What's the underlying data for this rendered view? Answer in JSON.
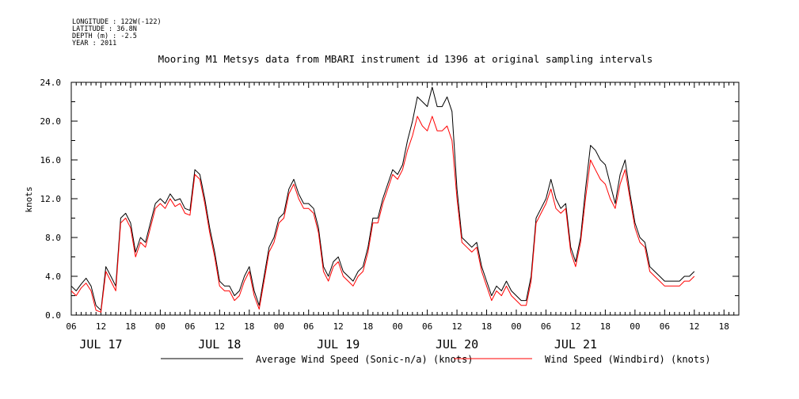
{
  "header": {
    "lines": [
      "LONGITUDE : 122W(-122)",
      "LATITUDE : 36.8N",
      "DEPTH (m) : -2.5",
      "YEAR : 2011"
    ]
  },
  "chart_data": {
    "type": "line",
    "title": "Mooring M1 Metsys data from MBARI instrument id 1396 at original sampling intervals",
    "ylabel": "knots",
    "xlabel": "",
    "ylim": [
      0,
      24
    ],
    "xlim_hours": [
      6,
      141
    ],
    "y_ticks": [
      "0.0",
      "4.0",
      "8.0",
      "12.0",
      "16.0",
      "20.0",
      "24.0"
    ],
    "x_ticks": [
      {
        "h": 6,
        "label": "06"
      },
      {
        "h": 12,
        "label": "12"
      },
      {
        "h": 18,
        "label": "18"
      },
      {
        "h": 24,
        "label": "00"
      },
      {
        "h": 30,
        "label": "06"
      },
      {
        "h": 36,
        "label": "12"
      },
      {
        "h": 42,
        "label": "18"
      },
      {
        "h": 48,
        "label": "00"
      },
      {
        "h": 54,
        "label": "06"
      },
      {
        "h": 60,
        "label": "12"
      },
      {
        "h": 66,
        "label": "18"
      },
      {
        "h": 72,
        "label": "00"
      },
      {
        "h": 78,
        "label": "06"
      },
      {
        "h": 84,
        "label": "12"
      },
      {
        "h": 90,
        "label": "18"
      },
      {
        "h": 96,
        "label": "00"
      },
      {
        "h": 102,
        "label": "06"
      },
      {
        "h": 108,
        "label": "12"
      },
      {
        "h": 114,
        "label": "18"
      },
      {
        "h": 120,
        "label": "00"
      },
      {
        "h": 126,
        "label": "06"
      },
      {
        "h": 132,
        "label": "12"
      },
      {
        "h": 138,
        "label": "18"
      }
    ],
    "day_labels": [
      {
        "h": 12,
        "label": "JUL 17"
      },
      {
        "h": 36,
        "label": "JUL 18"
      },
      {
        "h": 60,
        "label": "JUL 19"
      },
      {
        "h": 84,
        "label": "JUL 20"
      },
      {
        "h": 108,
        "label": "JUL 21"
      }
    ],
    "grid": false,
    "legend": "bottom",
    "x_hours": [
      6,
      7,
      8,
      9,
      10,
      11,
      12,
      13,
      14,
      15,
      16,
      17,
      18,
      19,
      20,
      21,
      22,
      23,
      24,
      25,
      26,
      27,
      28,
      29,
      30,
      31,
      32,
      33,
      34,
      35,
      36,
      37,
      38,
      39,
      40,
      41,
      42,
      43,
      44,
      45,
      46,
      47,
      48,
      49,
      50,
      51,
      52,
      53,
      54,
      55,
      56,
      57,
      58,
      59,
      60,
      61,
      62,
      63,
      64,
      65,
      66,
      67,
      68,
      69,
      70,
      71,
      72,
      73,
      74,
      75,
      76,
      77,
      78,
      79,
      80,
      81,
      82,
      83,
      84,
      85,
      86,
      87,
      88,
      89,
      90,
      91,
      92,
      93,
      94,
      95,
      96,
      97,
      98,
      99,
      100,
      101,
      102,
      103,
      104,
      105,
      106,
      107,
      108,
      109,
      110,
      111,
      112,
      113,
      114,
      115,
      116,
      117,
      118,
      119,
      120,
      121,
      122,
      123,
      124,
      125,
      126,
      127,
      128,
      129,
      130,
      131,
      132,
      133,
      134,
      135,
      136,
      137,
      138,
      139,
      140,
      141
    ],
    "series": [
      {
        "name": "Average Wind Speed (Sonic-n/a) (knots)",
        "color": "#000000",
        "values": [
          3.0,
          2.5,
          3.2,
          3.8,
          3.0,
          1.0,
          0.5,
          5.0,
          4.0,
          3.0,
          10.0,
          10.5,
          9.5,
          6.5,
          8.0,
          7.5,
          9.5,
          11.5,
          12.0,
          11.5,
          12.5,
          11.8,
          12.0,
          11.0,
          10.8,
          15.0,
          14.5,
          12.0,
          9.0,
          6.5,
          3.5,
          3.0,
          3.0,
          2.0,
          2.5,
          4.0,
          5.0,
          2.5,
          1.0,
          4.0,
          7.0,
          8.0,
          10.0,
          10.5,
          13.0,
          14.0,
          12.5,
          11.5,
          11.5,
          11.0,
          9.0,
          5.0,
          4.0,
          5.5,
          6.0,
          4.5,
          4.0,
          3.5,
          4.5,
          5.0,
          7.0,
          10.0,
          10.0,
          12.0,
          13.5,
          15.0,
          14.5,
          15.5,
          18.0,
          20.0,
          22.5,
          22.0,
          21.5,
          23.5,
          21.5,
          21.5,
          22.5,
          21.0,
          13.0,
          8.0,
          7.5,
          7.0,
          7.5,
          5.0,
          3.5,
          2.0,
          3.0,
          2.5,
          3.5,
          2.5,
          2.0,
          1.5,
          1.5,
          4.0,
          10.0,
          11.0,
          12.0,
          14.0,
          12.0,
          11.0,
          11.5,
          7.0,
          5.5,
          8.0,
          13.0,
          17.5,
          17.0,
          16.0,
          15.5,
          13.5,
          11.5,
          14.5,
          16.0,
          12.5,
          9.5,
          8.0,
          7.5,
          5.0,
          4.5,
          4.0,
          3.5,
          3.5,
          3.5,
          3.5,
          4.0,
          4.0,
          4.5
        ],
        "show_legend": true
      },
      {
        "name": "Wind Speed (Windbird) (knots)",
        "color": "#ff0000",
        "values": [
          2.5,
          2.0,
          2.8,
          3.3,
          2.5,
          0.5,
          0.3,
          4.5,
          3.5,
          2.5,
          9.5,
          10.0,
          9.0,
          6.0,
          7.5,
          7.0,
          9.0,
          11.0,
          11.5,
          11.0,
          12.0,
          11.2,
          11.5,
          10.5,
          10.3,
          14.5,
          14.0,
          11.5,
          8.5,
          6.0,
          3.0,
          2.5,
          2.5,
          1.5,
          2.0,
          3.5,
          4.5,
          2.0,
          0.6,
          3.5,
          6.5,
          7.5,
          9.5,
          10.0,
          12.5,
          13.5,
          12.0,
          11.0,
          11.0,
          10.5,
          8.5,
          4.5,
          3.5,
          5.0,
          5.5,
          4.0,
          3.5,
          3.0,
          4.0,
          4.5,
          6.5,
          9.5,
          9.5,
          11.5,
          13.0,
          14.5,
          14.0,
          15.0,
          17.0,
          18.5,
          20.5,
          19.5,
          19.0,
          20.5,
          19.0,
          19.0,
          19.5,
          18.0,
          12.0,
          7.5,
          7.0,
          6.5,
          7.0,
          4.5,
          3.0,
          1.5,
          2.5,
          2.0,
          3.0,
          2.0,
          1.5,
          1.0,
          1.0,
          3.5,
          9.5,
          10.5,
          11.5,
          13.0,
          11.0,
          10.5,
          11.0,
          6.5,
          5.0,
          7.5,
          12.0,
          16.0,
          15.0,
          14.0,
          13.5,
          12.0,
          11.0,
          13.5,
          15.0,
          12.0,
          9.0,
          7.5,
          7.0,
          4.5,
          4.0,
          3.5,
          3.0,
          3.0,
          3.0,
          3.0,
          3.5,
          3.5,
          4.0
        ],
        "show_legend": true
      }
    ]
  }
}
